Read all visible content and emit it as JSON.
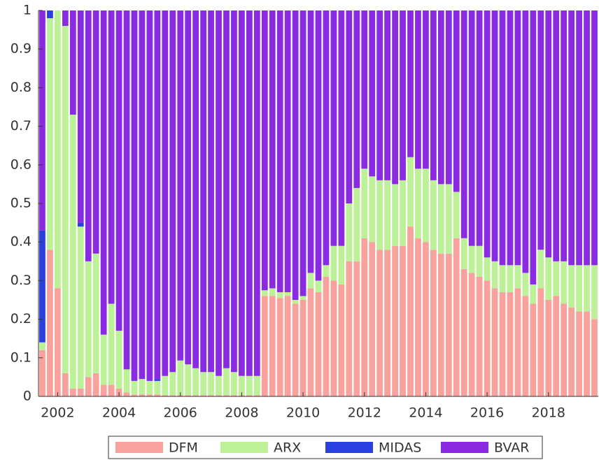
{
  "chart_data": {
    "type": "stacked_bar",
    "x": [
      2001.5,
      2001.75,
      2002,
      2002.25,
      2002.5,
      2002.75,
      2003,
      2003.25,
      2003.5,
      2003.75,
      2004,
      2004.25,
      2004.5,
      2004.75,
      2005,
      2005.25,
      2005.5,
      2005.75,
      2006,
      2006.25,
      2006.5,
      2006.75,
      2007,
      2007.25,
      2007.5,
      2007.75,
      2008,
      2008.25,
      2008.5,
      2008.75,
      2009,
      2009.25,
      2009.5,
      2009.75,
      2010,
      2010.25,
      2010.5,
      2010.75,
      2011,
      2011.25,
      2011.5,
      2011.75,
      2012,
      2012.25,
      2012.5,
      2012.75,
      2013,
      2013.25,
      2013.5,
      2013.75,
      2014,
      2014.25,
      2014.5,
      2014.75,
      2015,
      2015.25,
      2015.5,
      2015.75,
      2016,
      2016.25,
      2016.5,
      2016.75,
      2017,
      2017.25,
      2017.5,
      2017.75,
      2018,
      2018.25,
      2018.5,
      2018.75,
      2019,
      2019.25,
      2019.5
    ],
    "series": [
      {
        "name": "DFM",
        "color": "#f9a19c",
        "values": [
          0.12,
          0.38,
          0.28,
          0.06,
          0.02,
          0.02,
          0.05,
          0.06,
          0.03,
          0.03,
          0.02,
          0.01,
          0.005,
          0.005,
          0.005,
          0.005,
          0.003,
          0.003,
          0.003,
          0.003,
          0.003,
          0.003,
          0.003,
          0.003,
          0.003,
          0.003,
          0.003,
          0.003,
          0.003,
          0.26,
          0.26,
          0.255,
          0.26,
          0.24,
          0.25,
          0.28,
          0.27,
          0.31,
          0.3,
          0.29,
          0.35,
          0.35,
          0.41,
          0.4,
          0.38,
          0.38,
          0.39,
          0.39,
          0.44,
          0.41,
          0.4,
          0.38,
          0.37,
          0.37,
          0.41,
          0.33,
          0.32,
          0.31,
          0.3,
          0.28,
          0.27,
          0.27,
          0.28,
          0.26,
          0.24,
          0.28,
          0.25,
          0.26,
          0.24,
          0.23,
          0.22,
          0.22,
          0.2
        ]
      },
      {
        "name": "ARX",
        "color": "#bdf197",
        "values": [
          0.02,
          0.6,
          0.72,
          0.9,
          0.71,
          0.42,
          0.3,
          0.31,
          0.13,
          0.21,
          0.15,
          0.06,
          0.035,
          0.04,
          0.035,
          0.035,
          0.05,
          0.06,
          0.09,
          0.08,
          0.07,
          0.06,
          0.06,
          0.05,
          0.07,
          0.06,
          0.05,
          0.05,
          0.05,
          0.015,
          0.02,
          0.015,
          0.01,
          0.01,
          0.01,
          0.04,
          0.03,
          0.03,
          0.09,
          0.1,
          0.15,
          0.19,
          0.18,
          0.17,
          0.18,
          0.18,
          0.16,
          0.17,
          0.18,
          0.18,
          0.19,
          0.18,
          0.18,
          0.18,
          0.12,
          0.08,
          0.07,
          0.08,
          0.06,
          0.07,
          0.07,
          0.07,
          0.06,
          0.06,
          0.05,
          0.1,
          0.11,
          0.09,
          0.11,
          0.11,
          0.12,
          0.12,
          0.14
        ]
      },
      {
        "name": "MIDAS",
        "color": "#2a3fe0",
        "values": [
          0.29,
          0.02,
          0,
          0,
          0,
          0.01,
          0,
          0,
          0,
          0,
          0,
          0,
          0,
          0,
          0,
          0.005,
          0,
          0,
          0,
          0,
          0,
          0,
          0,
          0,
          0,
          0,
          0,
          0,
          0,
          0,
          0,
          0,
          0,
          0,
          0,
          0,
          0,
          0,
          0,
          0,
          0,
          0,
          0,
          0,
          0,
          0,
          0,
          0,
          0,
          0,
          0,
          0,
          0,
          0,
          0,
          0,
          0,
          0,
          0,
          0,
          0,
          0,
          0,
          0,
          0,
          0,
          0,
          0,
          0,
          0,
          0,
          0,
          0
        ]
      },
      {
        "name": "BVAR",
        "color": "#8a2be2",
        "values": [
          0.57,
          0,
          0,
          0.04,
          0.27,
          0.55,
          0.65,
          0.63,
          0.84,
          0.76,
          0.83,
          0.93,
          0.96,
          0.955,
          0.96,
          0.955,
          0.947,
          0.937,
          0.907,
          0.917,
          0.927,
          0.937,
          0.937,
          0.947,
          0.927,
          0.937,
          0.947,
          0.947,
          0.947,
          0.725,
          0.72,
          0.73,
          0.73,
          0.75,
          0.74,
          0.68,
          0.7,
          0.66,
          0.61,
          0.61,
          0.5,
          0.46,
          0.41,
          0.43,
          0.44,
          0.44,
          0.45,
          0.44,
          0.38,
          0.41,
          0.41,
          0.44,
          0.45,
          0.45,
          0.47,
          0.59,
          0.61,
          0.61,
          0.64,
          0.65,
          0.66,
          0.66,
          0.66,
          0.68,
          0.71,
          0.62,
          0.64,
          0.65,
          0.65,
          0.66,
          0.66,
          0.66,
          0.66
        ]
      }
    ],
    "xlim": [
      2001.375,
      2019.625
    ],
    "xticks": [
      2002,
      2004,
      2006,
      2008,
      2010,
      2012,
      2014,
      2016,
      2018
    ],
    "ylim": [
      0,
      1
    ],
    "yticks": [
      0,
      0.1,
      0.2,
      0.3,
      0.4,
      0.5,
      0.6,
      0.7,
      0.8,
      0.9,
      1
    ],
    "grid": false,
    "legend": "bottom"
  }
}
